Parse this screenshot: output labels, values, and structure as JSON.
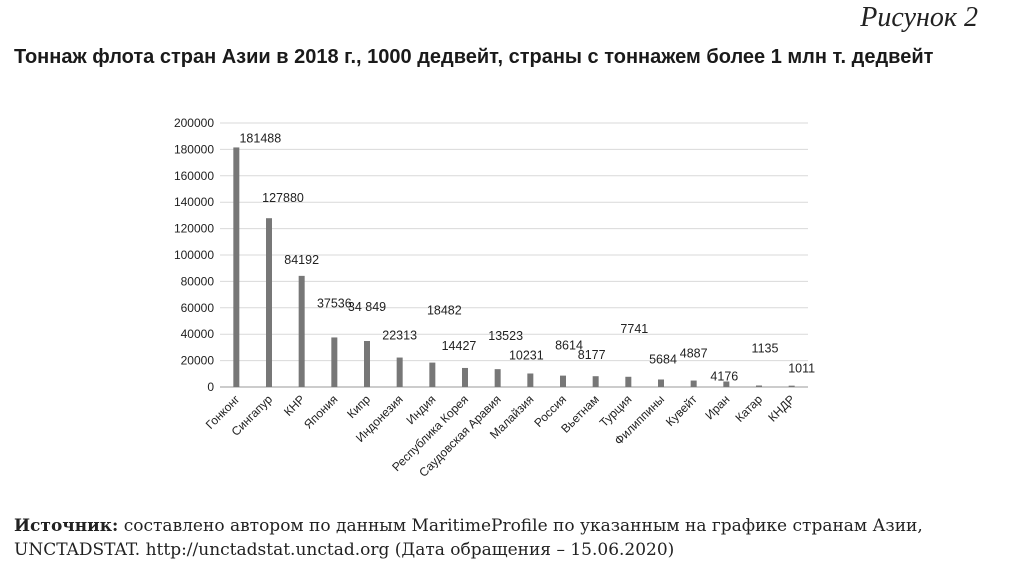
{
  "figure_label": "Рисунок 2",
  "source": {
    "label": "Источник:",
    "text": " составлено автором по данным MaritimeProfile по указанным на графике странам Азии, UNCTADSTAT. http://unctadstat.unctad.org (Дата обращения – 15.06.2020)"
  },
  "chart_data": {
    "type": "bar",
    "title": "Тоннаж флота стран Азии в 2018 г., 1000 дедвейт, страны с тоннажем более 1 млн т. дедвейт",
    "categories": [
      "Гонконг",
      "Сингапур",
      "КНР",
      "Япония",
      "Кипр",
      "Индонезия",
      "Индия",
      "Республика Корея",
      "Саудовская Аравия",
      "Малайзия",
      "Россия",
      "Вьетнам",
      "Турция",
      "Филиппины",
      "Кувейт",
      "Иран",
      "Катар",
      "КНДР"
    ],
    "values": [
      181488,
      127880,
      84192,
      37536,
      34849,
      22313,
      18482,
      14427,
      13523,
      10231,
      8614,
      8177,
      7741,
      5684,
      4887,
      4176,
      1135,
      1011
    ],
    "data_labels": [
      "181488",
      "127880",
      "84192",
      "37536",
      "34 849",
      "22313",
      "18482",
      "14427",
      "13523",
      "10231",
      "8614",
      "8177",
      "7741",
      "5684",
      "4887",
      "4176",
      "1135",
      "1011"
    ],
    "yticks": [
      "0",
      "20000",
      "40000",
      "60000",
      "80000",
      "100000",
      "120000",
      "140000",
      "160000",
      "180000",
      "200000"
    ],
    "ylim": [
      0,
      200000
    ],
    "xlabel": "",
    "ylabel": "",
    "grid": true,
    "legend": "none",
    "bar_color": "#777777",
    "grid_color": "#d9d9d9"
  }
}
